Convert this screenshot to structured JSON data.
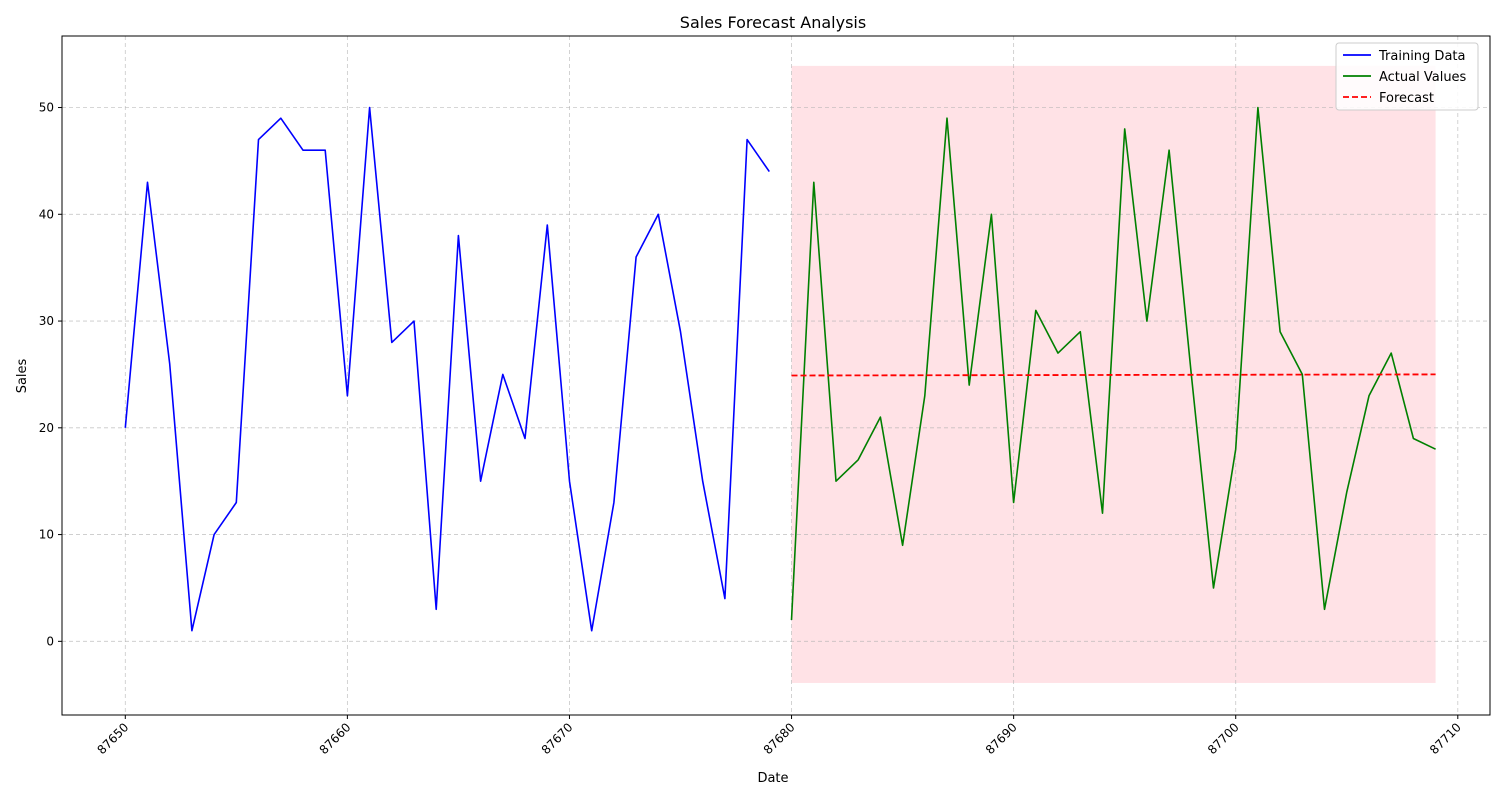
{
  "chart_data": {
    "type": "line",
    "title": "Sales Forecast Analysis",
    "xlabel": "Date",
    "ylabel": "Sales",
    "xlim": [
      87647.15,
      87711.45
    ],
    "ylim": [
      -6.9,
      56.7
    ],
    "x_ticks": [
      87650,
      87660,
      87670,
      87680,
      87690,
      87700,
      87710
    ],
    "y_ticks": [
      0,
      10,
      20,
      30,
      40,
      50
    ],
    "grid": true,
    "legend_position": "top-right",
    "confidence_band": {
      "x": [
        87680,
        87709
      ],
      "lower": -3.9,
      "upper": 53.9,
      "color": "#ffb6c1"
    },
    "series": [
      {
        "name": "Training Data",
        "color": "#0000ff",
        "style": "solid",
        "x": [
          87650,
          87651,
          87652,
          87653,
          87654,
          87655,
          87656,
          87657,
          87658,
          87659,
          87660,
          87661,
          87662,
          87663,
          87664,
          87665,
          87666,
          87667,
          87668,
          87669,
          87670,
          87671,
          87672,
          87673,
          87674,
          87675,
          87676,
          87677,
          87678,
          87679
        ],
        "values": [
          20,
          43,
          26,
          1,
          10,
          13,
          47,
          49,
          46,
          46,
          23,
          50,
          28,
          30,
          3,
          38,
          15,
          25,
          19,
          39,
          15,
          1,
          13,
          36,
          40,
          29,
          15,
          4,
          47,
          44
        ]
      },
      {
        "name": "Actual Values",
        "color": "#008000",
        "style": "solid",
        "x": [
          87680,
          87681,
          87682,
          87683,
          87684,
          87685,
          87686,
          87687,
          87688,
          87689,
          87690,
          87691,
          87692,
          87693,
          87694,
          87695,
          87696,
          87697,
          87698,
          87699,
          87700,
          87701,
          87702,
          87703,
          87704,
          87705,
          87706,
          87707,
          87708,
          87709
        ],
        "values": [
          2,
          43,
          15,
          17,
          21,
          9,
          23,
          49,
          24,
          40,
          13,
          31,
          27,
          29,
          12,
          48,
          30,
          46,
          25,
          5,
          18,
          50,
          29,
          25,
          3,
          14,
          23,
          27,
          19,
          18
        ]
      },
      {
        "name": "Forecast",
        "color": "#ff0000",
        "style": "dashed",
        "x": [
          87680,
          87709
        ],
        "values": [
          24.9,
          25
        ]
      }
    ]
  }
}
